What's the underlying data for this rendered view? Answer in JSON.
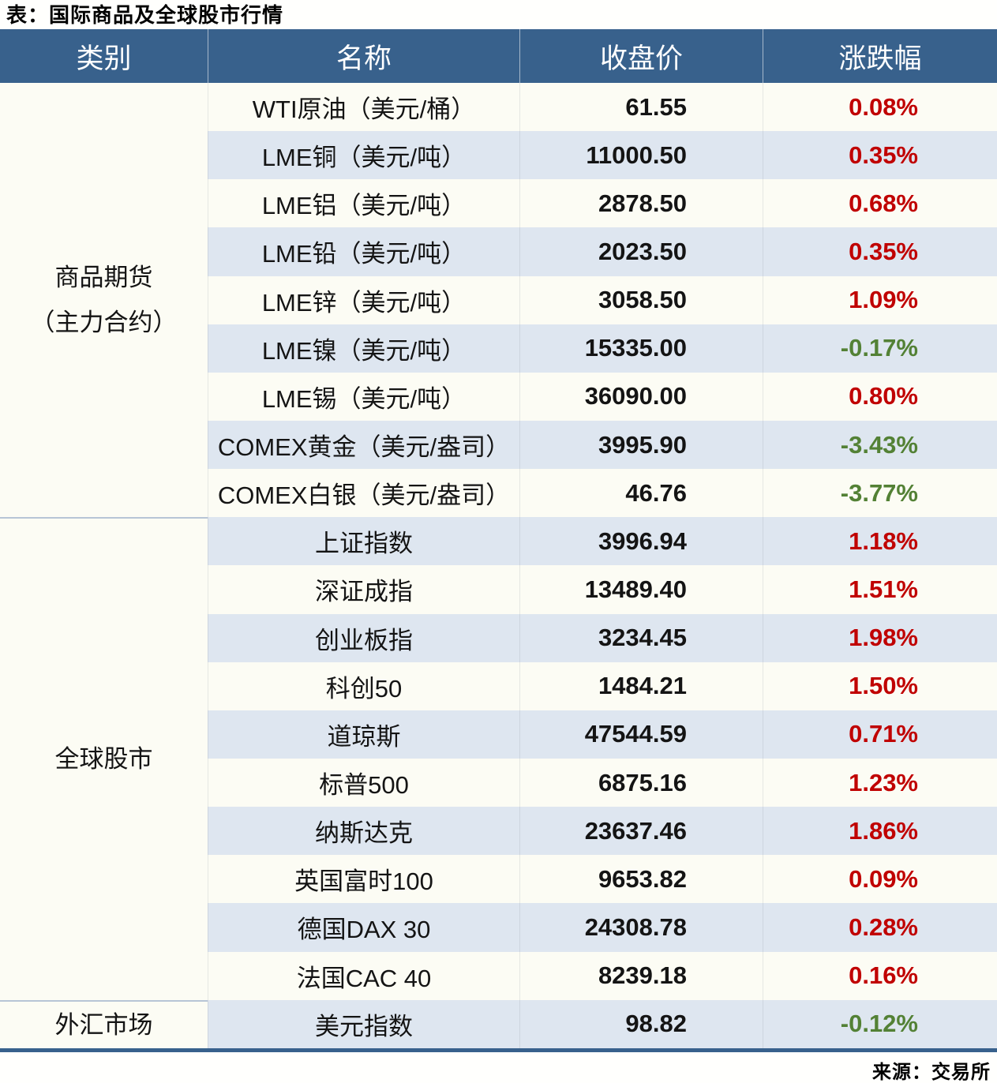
{
  "title": "表：国际商品及全球股市行情",
  "source_note": "来源：交易所",
  "colors": {
    "header_bg": "#38618C",
    "header_text": "#FFFFFF",
    "stripe_bg": "#DEE6F0",
    "plain_bg": "#FCFCF4",
    "up": "#C00000",
    "down": "#538135",
    "divider": "#B7C5D6",
    "col_line": "rgba(130,140,150,0.18)",
    "bottom_border": "#38618C"
  },
  "table": {
    "headers": [
      "类别",
      "名称",
      "收盘价",
      "涨跌幅"
    ],
    "groups": [
      {
        "category_lines": [
          "商品期货",
          "（主力合约）"
        ],
        "rows": [
          {
            "name": "WTI原油（美元/桶）",
            "close": "61.55",
            "change": "0.08%"
          },
          {
            "name": "LME铜（美元/吨）",
            "close": "11000.50",
            "change": "0.35%"
          },
          {
            "name": "LME铝（美元/吨）",
            "close": "2878.50",
            "change": "0.68%"
          },
          {
            "name": "LME铅（美元/吨）",
            "close": "2023.50",
            "change": "0.35%"
          },
          {
            "name": "LME锌（美元/吨）",
            "close": "3058.50",
            "change": "1.09%"
          },
          {
            "name": "LME镍（美元/吨）",
            "close": "15335.00",
            "change": "-0.17%"
          },
          {
            "name": "LME锡（美元/吨）",
            "close": "36090.00",
            "change": "0.80%"
          },
          {
            "name": "COMEX黄金（美元/盎司）",
            "close": "3995.90",
            "change": "-3.43%"
          },
          {
            "name": "COMEX白银（美元/盎司）",
            "close": "46.76",
            "change": "-3.77%"
          }
        ]
      },
      {
        "category_lines": [
          "全球股市"
        ],
        "rows": [
          {
            "name": "上证指数",
            "close": "3996.94",
            "change": "1.18%"
          },
          {
            "name": "深证成指",
            "close": "13489.40",
            "change": "1.51%"
          },
          {
            "name": "创业板指",
            "close": "3234.45",
            "change": "1.98%"
          },
          {
            "name": "科创50",
            "close": "1484.21",
            "change": "1.50%"
          },
          {
            "name": "道琼斯",
            "close": "47544.59",
            "change": "0.71%"
          },
          {
            "name": "标普500",
            "close": "6875.16",
            "change": "1.23%"
          },
          {
            "name": "纳斯达克",
            "close": "23637.46",
            "change": "1.86%"
          },
          {
            "name": "英国富时100",
            "close": "9653.82",
            "change": "0.09%"
          },
          {
            "name": "德国DAX 30",
            "close": "24308.78",
            "change": "0.28%"
          },
          {
            "name": "法国CAC 40",
            "close": "8239.18",
            "change": "0.16%"
          }
        ]
      },
      {
        "category_lines": [
          "外汇市场"
        ],
        "rows": [
          {
            "name": "美元指数",
            "close": "98.82",
            "change": "-0.12%"
          }
        ]
      }
    ]
  },
  "chart_data": {
    "type": "table",
    "title": "表：国际商品及全球股市行情",
    "columns": [
      "类别",
      "名称",
      "收盘价",
      "涨跌幅"
    ],
    "rows": [
      [
        "商品期货（主力合约）",
        "WTI原油（美元/桶）",
        61.55,
        "0.08%"
      ],
      [
        "商品期货（主力合约）",
        "LME铜（美元/吨）",
        11000.5,
        "0.35%"
      ],
      [
        "商品期货（主力合约）",
        "LME铝（美元/吨）",
        2878.5,
        "0.68%"
      ],
      [
        "商品期货（主力合约）",
        "LME铅（美元/吨）",
        2023.5,
        "0.35%"
      ],
      [
        "商品期货（主力合约）",
        "LME锌（美元/吨）",
        3058.5,
        "1.09%"
      ],
      [
        "商品期货（主力合约）",
        "LME镍（美元/吨）",
        15335.0,
        "-0.17%"
      ],
      [
        "商品期货（主力合约）",
        "LME锡（美元/吨）",
        36090.0,
        "0.80%"
      ],
      [
        "商品期货（主力合约）",
        "COMEX黄金（美元/盎司）",
        3995.9,
        "-3.43%"
      ],
      [
        "商品期货（主力合约）",
        "COMEX白银（美元/盎司）",
        46.76,
        "-3.77%"
      ],
      [
        "全球股市",
        "上证指数",
        3996.94,
        "1.18%"
      ],
      [
        "全球股市",
        "深证成指",
        13489.4,
        "1.51%"
      ],
      [
        "全球股市",
        "创业板指",
        3234.45,
        "1.98%"
      ],
      [
        "全球股市",
        "科创50",
        1484.21,
        "1.50%"
      ],
      [
        "全球股市",
        "道琼斯",
        47544.59,
        "0.71%"
      ],
      [
        "全球股市",
        "标普500",
        6875.16,
        "1.23%"
      ],
      [
        "全球股市",
        "纳斯达克",
        23637.46,
        "1.86%"
      ],
      [
        "全球股市",
        "英国富时100",
        9653.82,
        "0.09%"
      ],
      [
        "全球股市",
        "德国DAX 30",
        24308.78,
        "0.28%"
      ],
      [
        "全球股市",
        "法国CAC 40",
        8239.18,
        "0.16%"
      ],
      [
        "外汇市场",
        "美元指数",
        98.82,
        "-0.12%"
      ]
    ],
    "legend": {
      "positive_color": "#C00000",
      "negative_color": "#538135"
    },
    "source": "来源：交易所"
  }
}
